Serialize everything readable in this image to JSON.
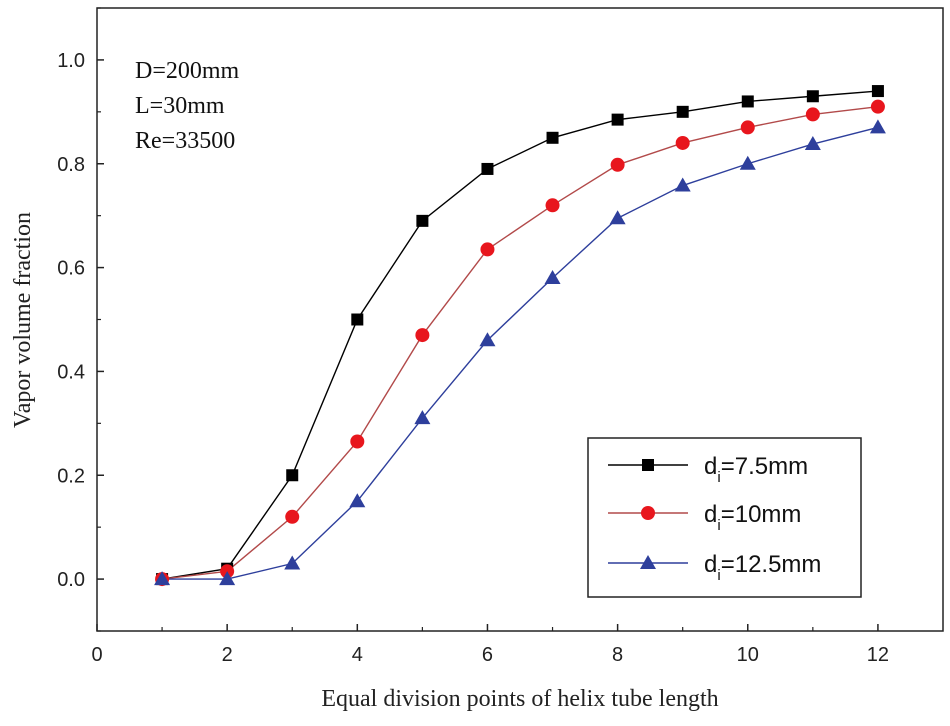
{
  "chart_data": {
    "type": "line",
    "title": "",
    "xlabel": "Equal division points of helix tube length",
    "ylabel": "Vapor volume fraction",
    "xlim": [
      0,
      13
    ],
    "ylim": [
      -0.1,
      1.1
    ],
    "xticks": [
      0,
      2,
      4,
      6,
      8,
      10,
      12
    ],
    "yticks": [
      0.0,
      0.2,
      0.4,
      0.6,
      0.8,
      1.0
    ],
    "xtick_labels": [
      "0",
      "2",
      "4",
      "6",
      "8",
      "10",
      "12"
    ],
    "ytick_labels": [
      "0.0",
      "0.2",
      "0.4",
      "0.6",
      "0.8",
      "1.0"
    ],
    "grid": false,
    "legend_position": "bottom-right",
    "annotations": [
      "D=200mm",
      "L=30mm",
      "Re=33500"
    ],
    "x": [
      1,
      2,
      3,
      4,
      5,
      6,
      7,
      8,
      9,
      10,
      11,
      12
    ],
    "series": [
      {
        "name": "di=7.5mm",
        "legend_main": "d",
        "legend_sub": "i",
        "legend_rest": "=7.5mm",
        "marker": "square",
        "color": "#000000",
        "line_color": "#000000",
        "values": [
          0.0,
          0.02,
          0.2,
          0.5,
          0.69,
          0.79,
          0.85,
          0.885,
          0.9,
          0.92,
          0.93,
          0.94
        ]
      },
      {
        "name": "di=10mm",
        "legend_main": "d",
        "legend_sub": "i",
        "legend_rest": "=10mm",
        "marker": "circle",
        "color": "#e8161d",
        "line_color": "#b24a4a",
        "values": [
          0.0,
          0.015,
          0.12,
          0.265,
          0.47,
          0.635,
          0.72,
          0.798,
          0.84,
          0.87,
          0.895,
          0.91
        ]
      },
      {
        "name": "di=12.5mm",
        "legend_main": "d",
        "legend_sub": "i",
        "legend_rest": "=12.5mm",
        "marker": "triangle",
        "color": "#2e3f9c",
        "line_color": "#2e3f9c",
        "values": [
          0.0,
          0.0,
          0.03,
          0.15,
          0.31,
          0.46,
          0.58,
          0.695,
          0.758,
          0.8,
          0.838,
          0.87
        ]
      }
    ]
  }
}
